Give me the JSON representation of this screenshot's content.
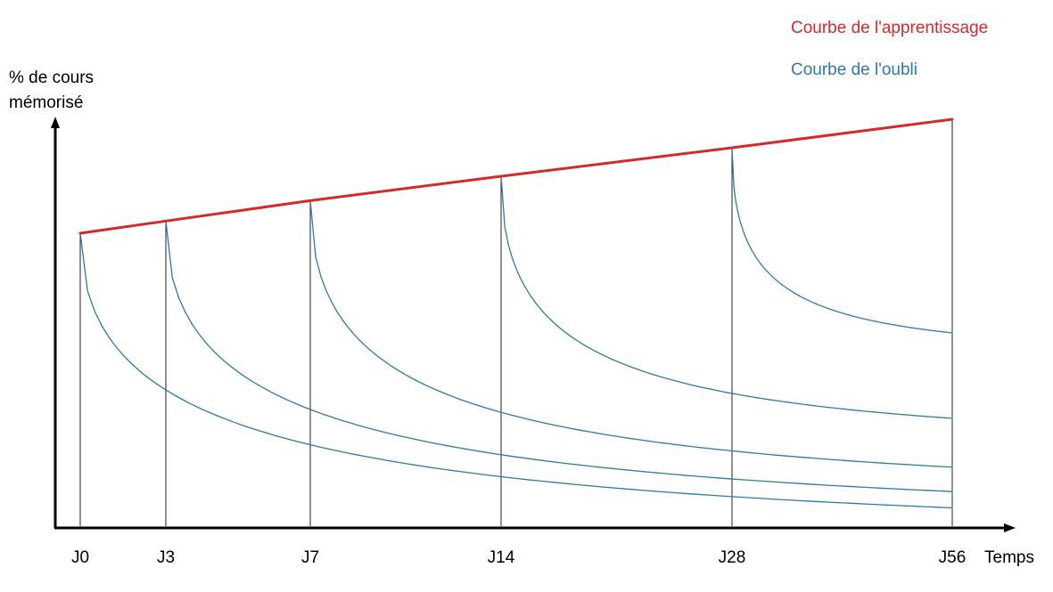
{
  "chart_data": {
    "type": "line",
    "ylabel_lines": [
      "% de cours",
      "mémorisé"
    ],
    "xlabel": "Temps",
    "categories": [
      "J0",
      "J3",
      "J7",
      "J14",
      "J28",
      "J56"
    ],
    "ylim": [
      0,
      100
    ],
    "grid": false,
    "legend_position": "top-right",
    "colors": {
      "learning": "#d42a2a",
      "forgetting": "#2e79a8",
      "axis": "#000000",
      "guide": "#222222"
    },
    "series": [
      {
        "name": "Courbe de l'apprentissage",
        "kind": "learning",
        "points": [
          [
            "J0",
            72
          ],
          [
            "J3",
            75
          ],
          [
            "J7",
            80
          ],
          [
            "J14",
            86
          ],
          [
            "J28",
            93
          ],
          [
            "J56",
            100
          ]
        ]
      },
      {
        "name": "Courbe de l'oubli",
        "kind": "forgetting",
        "start": "J0",
        "start_value": 72,
        "end_value": 4.5
      },
      {
        "name": "Courbe de l'oubli",
        "kind": "forgetting",
        "start": "J3",
        "start_value": 75,
        "end_value": 8.5
      },
      {
        "name": "Courbe de l'oubli",
        "kind": "forgetting",
        "start": "J7",
        "start_value": 80,
        "end_value": 14.5
      },
      {
        "name": "Courbe de l'oubli",
        "kind": "forgetting",
        "start": "J14",
        "start_value": 86,
        "end_value": 26.5
      },
      {
        "name": "Courbe de l'oubli",
        "kind": "forgetting",
        "start": "J28",
        "start_value": 93,
        "end_value": 47.5
      }
    ],
    "legend": [
      {
        "label": "Courbe de l'apprentissage",
        "kind": "learning"
      },
      {
        "label": "Courbe de l'oubli",
        "kind": "forgetting"
      }
    ]
  }
}
